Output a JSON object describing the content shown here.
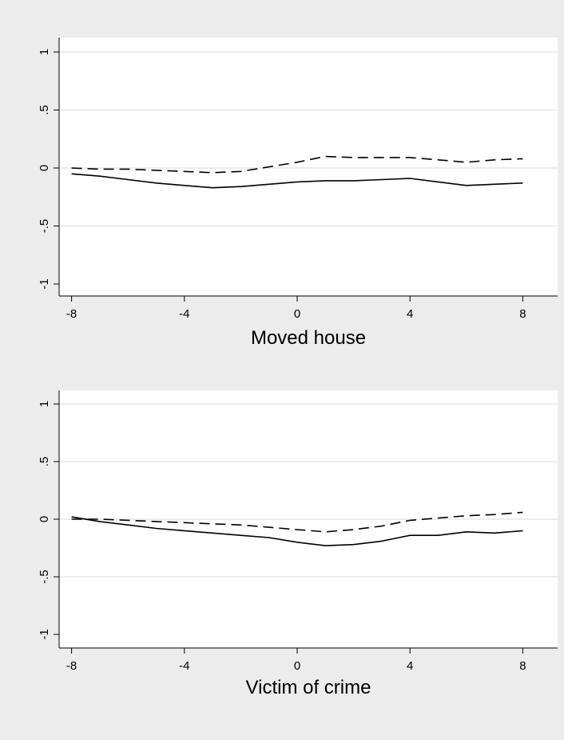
{
  "chart_data": [
    {
      "type": "line",
      "title": "",
      "xlabel": "Moved house",
      "ylabel": "",
      "xlim": [
        -8,
        8
      ],
      "ylim": [
        -1,
        1
      ],
      "xticks": [
        -8,
        -4,
        0,
        4,
        8
      ],
      "yticks": [
        1,
        0.5,
        0,
        -0.5,
        -1
      ],
      "xtick_labels": [
        "-8",
        "-4",
        "0",
        "4",
        "8"
      ],
      "ytick_labels": [
        "1",
        ".5",
        "0",
        "-.5",
        "-1"
      ],
      "grid": true,
      "legend": "none",
      "series": [
        {
          "style": "dashed",
          "color": "#000000",
          "x": [
            -8,
            -7,
            -6,
            -5,
            -4,
            -3,
            -2,
            -1,
            0,
            1,
            2,
            3,
            4,
            5,
            6,
            7,
            8
          ],
          "y": [
            0.0,
            -0.01,
            -0.01,
            -0.02,
            -0.03,
            -0.04,
            -0.03,
            0.01,
            0.05,
            0.1,
            0.09,
            0.09,
            0.09,
            0.07,
            0.05,
            0.07,
            0.08
          ]
        },
        {
          "style": "solid",
          "color": "#000000",
          "x": [
            -8,
            -7,
            -6,
            -5,
            -4,
            -3,
            -2,
            -1,
            0,
            1,
            2,
            3,
            4,
            5,
            6,
            7,
            8
          ],
          "y": [
            -0.05,
            -0.07,
            -0.1,
            -0.13,
            -0.15,
            -0.17,
            -0.16,
            -0.14,
            -0.12,
            -0.11,
            -0.11,
            -0.1,
            -0.09,
            -0.12,
            -0.15,
            -0.14,
            -0.13
          ]
        }
      ]
    },
    {
      "type": "line",
      "title": "",
      "xlabel": "Victim of crime",
      "ylabel": "",
      "xlim": [
        -8,
        8
      ],
      "ylim": [
        -1,
        1
      ],
      "xticks": [
        -8,
        -4,
        0,
        4,
        8
      ],
      "yticks": [
        1,
        0.5,
        0,
        -0.5,
        -1
      ],
      "xtick_labels": [
        "-8",
        "-4",
        "0",
        "4",
        "8"
      ],
      "ytick_labels": [
        "1",
        ".5",
        "0",
        "-.5",
        "-1"
      ],
      "grid": true,
      "legend": "none",
      "series": [
        {
          "style": "dashed",
          "color": "#000000",
          "x": [
            -8,
            -7,
            -6,
            -5,
            -4,
            -3,
            -2,
            -1,
            0,
            1,
            2,
            3,
            4,
            5,
            6,
            7,
            8
          ],
          "y": [
            0.0,
            0.0,
            -0.01,
            -0.02,
            -0.03,
            -0.04,
            -0.05,
            -0.07,
            -0.09,
            -0.11,
            -0.09,
            -0.06,
            -0.01,
            0.01,
            0.03,
            0.04,
            0.06
          ]
        },
        {
          "style": "solid",
          "color": "#000000",
          "x": [
            -8,
            -7,
            -6,
            -5,
            -4,
            -3,
            -2,
            -1,
            0,
            1,
            2,
            3,
            4,
            5,
            6,
            7,
            8
          ],
          "y": [
            0.02,
            -0.02,
            -0.05,
            -0.08,
            -0.1,
            -0.12,
            -0.14,
            -0.16,
            -0.2,
            -0.23,
            -0.22,
            -0.19,
            -0.14,
            -0.14,
            -0.11,
            -0.12,
            -0.1
          ]
        }
      ]
    }
  ]
}
